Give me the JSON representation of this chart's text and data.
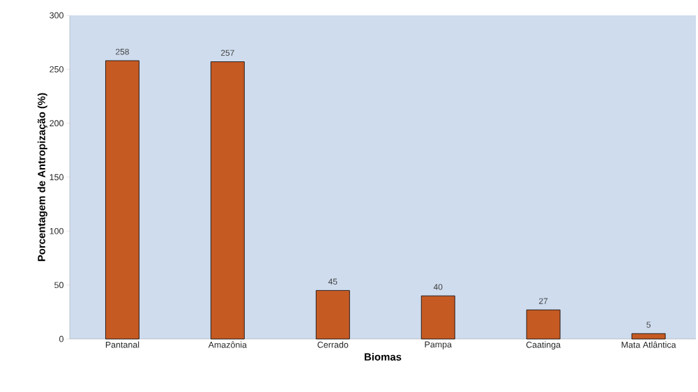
{
  "chart_data": {
    "type": "bar",
    "xlabel": "Biomas",
    "ylabel": "Porcentagem de Antropização (%)",
    "categories": [
      "Pantanal",
      "Amazônia",
      "Cerrado",
      "Pampa",
      "Caatinga",
      "Mata Atlântica"
    ],
    "values": [
      258,
      257,
      45,
      40,
      27,
      5
    ],
    "color": "#c55a23",
    "data_labels": true,
    "ylim": [
      0,
      300
    ],
    "yticks": [
      0,
      50,
      100,
      150,
      200,
      250,
      300
    ],
    "grid": false
  }
}
